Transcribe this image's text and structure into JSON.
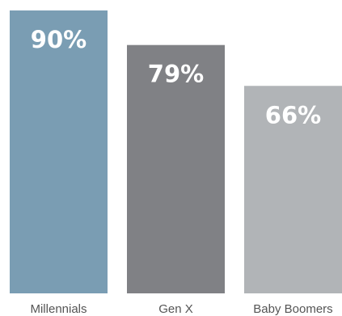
{
  "chart_data": {
    "type": "bar",
    "categories": [
      "Millennials",
      "Gen X",
      "Baby Boomers"
    ],
    "values": [
      90,
      79,
      66
    ],
    "value_labels": [
      "90%",
      "79%",
      "66%"
    ],
    "colors": [
      "#7a9db3",
      "#808185",
      "#b1b4b7"
    ],
    "title": "",
    "xlabel": "",
    "ylabel": "",
    "ylim": [
      0,
      100
    ],
    "grid": false,
    "legend": "none"
  }
}
